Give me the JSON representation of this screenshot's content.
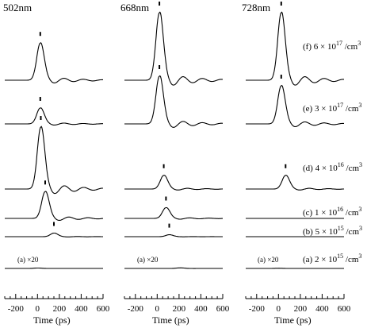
{
  "chart_data": {
    "type": "line",
    "panels": [
      {
        "label": "502nm"
      },
      {
        "label": "668nm"
      },
      {
        "label": "728nm"
      }
    ],
    "xlabel": "Time (ps)",
    "xlim": [
      -300,
      600
    ],
    "xticks": [
      -200,
      0,
      200,
      400,
      600
    ],
    "rows": [
      {
        "id": "f",
        "label_pre": "(f) 6 × 10",
        "exp": "17",
        "unit": " /cm",
        "unit_exp": "3"
      },
      {
        "id": "e",
        "label_pre": "(e) 3 × 10",
        "exp": "17",
        "unit": " /cm",
        "unit_exp": "3"
      },
      {
        "id": "d",
        "label_pre": "(d) 4 × 10",
        "exp": "16",
        "unit": " /cm",
        "unit_exp": "3"
      },
      {
        "id": "c",
        "label_pre": "(c) 1 × 10",
        "exp": "16",
        "unit": " /cm",
        "unit_exp": "3"
      },
      {
        "id": "b",
        "label_pre": "(b) 5 × 10",
        "exp": "15",
        "unit": " /cm",
        "unit_exp": "3"
      },
      {
        "id": "a",
        "label_pre": "(a) 2 × 10",
        "exp": "15",
        "unit": " /cm",
        "unit_exp": "3"
      }
    ],
    "magnification_label": "(a) ×20",
    "peaks": [
      {
        "f": [
          25,
          0.55
        ],
        "e": [
          25,
          0.25
        ],
        "d": [
          30,
          1.0
        ],
        "c": [
          70,
          0.45
        ],
        "b": [
          150,
          0.15
        ],
        "a": [
          0,
          0.02
        ]
      },
      {
        "f": [
          20,
          1.0
        ],
        "e": [
          20,
          0.75
        ],
        "d": [
          60,
          0.22
        ],
        "c": [
          80,
          0.18
        ],
        "b": [
          110,
          0.08
        ],
        "a": [
          210,
          0.03
        ]
      },
      {
        "f": [
          25,
          1.0
        ],
        "e": [
          25,
          0.6
        ],
        "d": [
          65,
          0.22
        ],
        "c": [
          0,
          0.0
        ],
        "b": [
          0,
          0.0
        ],
        "a": [
          0,
          0.01
        ]
      }
    ]
  }
}
